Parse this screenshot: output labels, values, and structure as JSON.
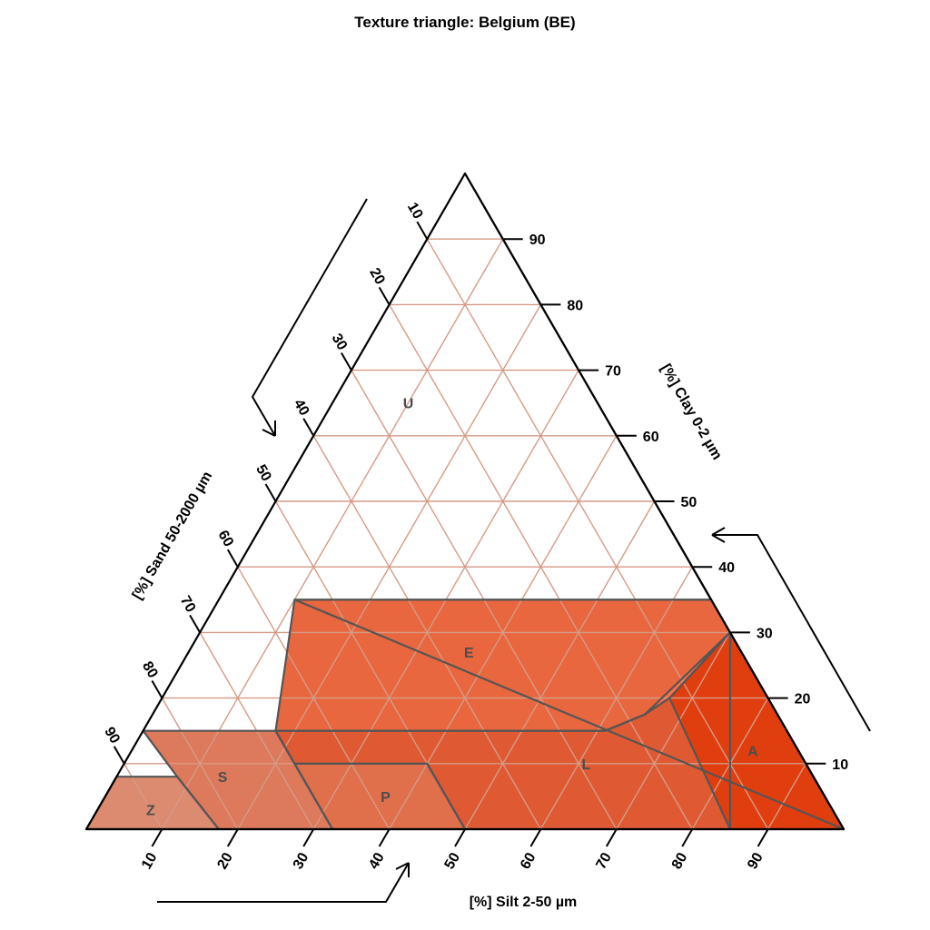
{
  "chart_data": {
    "type": "ternary",
    "title": "Texture triangle: Belgium (BE)",
    "axes": {
      "clay": {
        "label": "[%] Clay 0-2 µm",
        "ticks": [
          10,
          20,
          30,
          40,
          50,
          60,
          70,
          80,
          90
        ],
        "range": [
          0,
          100
        ]
      },
      "silt": {
        "label": "[%] Silt 2-50 µm",
        "ticks": [
          10,
          20,
          30,
          40,
          50,
          60,
          70,
          80,
          90
        ],
        "range": [
          0,
          100
        ]
      },
      "sand": {
        "label": "[%] Sand 50-2000 µm",
        "ticks": [
          10,
          20,
          30,
          40,
          50,
          60,
          70,
          80,
          90
        ],
        "range": [
          0,
          100
        ]
      }
    },
    "grid": true,
    "grid_step": 10,
    "classes": [
      {
        "label": "U",
        "color": "#ff7043",
        "vertices": [
          [
            100,
            0
          ],
          [
            45,
            55
          ],
          [
            35,
            65
          ],
          [
            35,
            10
          ],
          [
            0,
            100
          ],
          [
            100,
            0
          ]
        ],
        "label_at": [
          65,
          10
        ]
      },
      {
        "label": "E",
        "color": "#e8673f",
        "vertices": [
          [
            35,
            65
          ],
          [
            45,
            55
          ],
          [
            30,
            70
          ],
          [
            17.5,
            65
          ],
          [
            15,
            61
          ],
          [
            15,
            17.5
          ],
          [
            35,
            10
          ]
        ],
        "label_at": [
          27,
          37
        ]
      },
      {
        "label": "L",
        "color": "#df5a33",
        "vertices": [
          [
            15,
            17.5
          ],
          [
            15,
            61
          ],
          [
            17.5,
            65
          ],
          [
            20,
            67
          ],
          [
            30,
            70
          ],
          [
            0,
            85
          ],
          [
            0,
            50
          ],
          [
            10,
            40
          ],
          [
            10,
            22.5
          ]
        ],
        "label_at": [
          10,
          61
        ]
      },
      {
        "label": "A",
        "color": "#e03e0e",
        "vertices": [
          [
            30,
            70
          ],
          [
            20,
            67
          ],
          [
            0,
            85
          ],
          [
            0,
            100
          ]
        ],
        "label_at": [
          12,
          82
        ]
      },
      {
        "label": "P",
        "color": "#e06f4b",
        "vertices": [
          [
            10,
            22.5
          ],
          [
            10,
            40
          ],
          [
            0,
            50
          ],
          [
            0,
            32.5
          ]
        ],
        "label_at": [
          5,
          37
        ]
      },
      {
        "label": "S",
        "color": "#dd7a5c",
        "vertices": [
          [
            15,
            0
          ],
          [
            15,
            17.5
          ],
          [
            10,
            22.5
          ],
          [
            0,
            32.5
          ],
          [
            0,
            17.5
          ],
          [
            8,
            8
          ]
        ],
        "label_at": [
          8,
          14
        ]
      },
      {
        "label": "Z",
        "color": "#dc8a70",
        "vertices": [
          [
            8,
            0
          ],
          [
            8,
            8
          ],
          [
            0,
            17.5
          ],
          [
            0,
            0
          ]
        ],
        "label_at": [
          3,
          7
        ]
      }
    ]
  }
}
